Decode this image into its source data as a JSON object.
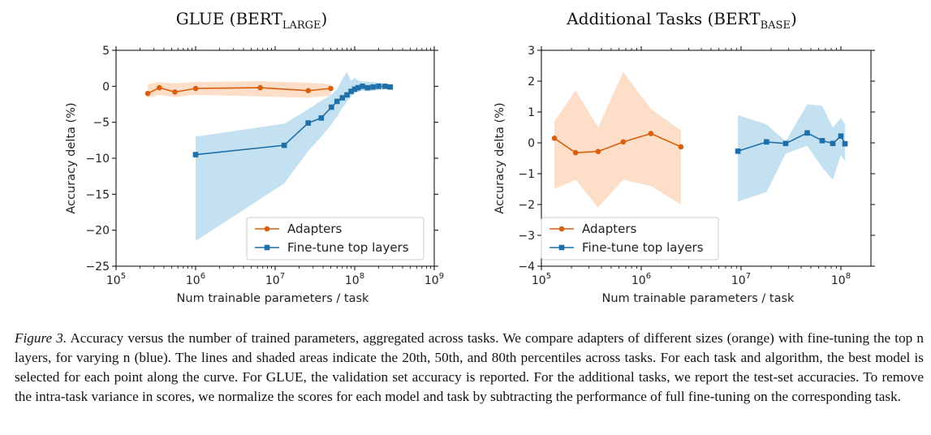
{
  "chart_data": [
    {
      "type": "line",
      "title": "GLUE (BERT",
      "title_sub": "LARGE",
      "title_end": ")",
      "xlabel": "Num trainable parameters / task",
      "ylabel": "Accuracy delta (%)",
      "xscale": "log",
      "xlim": [
        100000,
        1000000000
      ],
      "ylim": [
        -25,
        5
      ],
      "yticks": [
        5,
        0,
        -5,
        -10,
        -15,
        -20,
        -25
      ],
      "ytick_labels": [
        "5",
        "0",
        "−5",
        "−10",
        "−15",
        "−20",
        "−25"
      ],
      "xticks": [
        100000,
        1000000,
        10000000,
        100000000,
        1000000000
      ],
      "xtick_labels": [
        {
          "base": "10",
          "exp": "5"
        },
        {
          "base": "10",
          "exp": "6"
        },
        {
          "base": "10",
          "exp": "7"
        },
        {
          "base": "10",
          "exp": "8"
        },
        {
          "base": "10",
          "exp": "9"
        }
      ],
      "legend_position": "bottom-right",
      "series": [
        {
          "name": "Adapters",
          "color": "#d95f0e",
          "band_color": "#fdd9bf",
          "marker": "circle",
          "x": [
            250000,
            350000,
            550000,
            1000000,
            6500000,
            26000000,
            50000000
          ],
          "y": [
            -1.0,
            -0.2,
            -0.8,
            -0.3,
            -0.2,
            -0.6,
            -0.3
          ],
          "y_low": [
            -1.6,
            -1.2,
            -1.5,
            -1.2,
            -1.4,
            -1.6,
            -1.3
          ],
          "y_high": [
            0.3,
            0.6,
            0.4,
            0.6,
            0.7,
            0.5,
            0.3
          ]
        },
        {
          "name": "Fine-tune top layers",
          "color": "#1f6fa8",
          "band_color": "#b9dcef",
          "marker": "square",
          "x": [
            1000000,
            13000000,
            26000000,
            38000000,
            51000000,
            60000000,
            70000000,
            80000000,
            90000000,
            100000000,
            110000000,
            125000000,
            145000000,
            170000000,
            200000000,
            240000000,
            280000000
          ],
          "y": [
            -9.5,
            -8.2,
            -5.1,
            -4.4,
            -2.9,
            -2.1,
            -1.6,
            -1.2,
            -0.7,
            -0.4,
            -0.2,
            0.0,
            -0.2,
            -0.1,
            0.0,
            0.0,
            -0.1
          ],
          "y_low": [
            -21.5,
            -13.5,
            -9.0,
            -7.0,
            -5.3,
            -4.2,
            -3.0,
            -2.2,
            -1.4,
            -1.0,
            -0.8,
            -0.6,
            -0.7,
            -0.6,
            -0.5,
            -0.4,
            -0.4
          ],
          "y_high": [
            -7.0,
            -5.2,
            -3.2,
            -2.0,
            -1.2,
            -0.4,
            1.0,
            2.0,
            0.8,
            1.2,
            0.8,
            0.7,
            0.6,
            0.6,
            0.5,
            0.4,
            0.3
          ]
        }
      ]
    },
    {
      "type": "line",
      "title": "Additional Tasks (BERT",
      "title_sub": "BASE",
      "title_end": ")",
      "xlabel": "Num trainable parameters / task",
      "ylabel": "Accuracy delta (%)",
      "xscale": "log",
      "xlim": [
        100000,
        200000000
      ],
      "ylim": [
        -4,
        3
      ],
      "yticks": [
        3,
        2,
        1,
        0,
        -1,
        -2,
        -3,
        -4
      ],
      "ytick_labels": [
        "3",
        "2",
        "1",
        "0",
        "−1",
        "−2",
        "−3",
        "−4"
      ],
      "xticks": [
        100000,
        1000000,
        10000000,
        100000000
      ],
      "xtick_labels": [
        {
          "base": "10",
          "exp": "5"
        },
        {
          "base": "10",
          "exp": "6"
        },
        {
          "base": "10",
          "exp": "7"
        },
        {
          "base": "10",
          "exp": "8"
        }
      ],
      "legend_position": "bottom-left",
      "series": [
        {
          "name": "Adapters",
          "color": "#d95f0e",
          "band_color": "#fdd9bf",
          "marker": "circle",
          "x": [
            135000,
            220000,
            370000,
            660000,
            1250000,
            2500000
          ],
          "y": [
            0.15,
            -0.32,
            -0.28,
            0.03,
            0.3,
            -0.13
          ],
          "y_low": [
            -1.5,
            -1.2,
            -2.1,
            -1.2,
            -1.4,
            -2.0
          ],
          "y_high": [
            0.7,
            1.7,
            0.5,
            2.3,
            1.1,
            0.4
          ]
        },
        {
          "name": "Fine-tune top layers",
          "color": "#1f6fa8",
          "band_color": "#b9dcef",
          "marker": "square",
          "x": [
            9300000,
            18000000,
            28000000,
            46000000,
            65000000,
            83000000,
            100000000,
            110000000
          ],
          "y": [
            -0.27,
            0.03,
            -0.02,
            0.32,
            0.07,
            -0.02,
            0.22,
            -0.03
          ],
          "y_low": [
            -1.9,
            -1.6,
            -0.35,
            -0.1,
            -0.8,
            -1.2,
            -0.4,
            -0.6
          ],
          "y_high": [
            0.9,
            0.6,
            0.05,
            1.25,
            1.2,
            0.5,
            0.8,
            0.6
          ]
        }
      ]
    }
  ],
  "caption": {
    "label": "Figure 3.",
    "text": "Accuracy versus the number of trained parameters, aggregated across tasks. We compare adapters of different sizes (orange) with fine-tuning the top n layers, for varying n (blue). The lines and shaded areas indicate the 20th, 50th, and 80th percentiles across tasks. For each task and algorithm, the best model is selected for each point along the curve. For GLUE, the validation set accuracy is reported. For the additional tasks, we report the test-set accuracies. To remove the intra-task variance in scores, we normalize the scores for each model and task by subtracting the performance of full fine-tuning on the corresponding task."
  }
}
